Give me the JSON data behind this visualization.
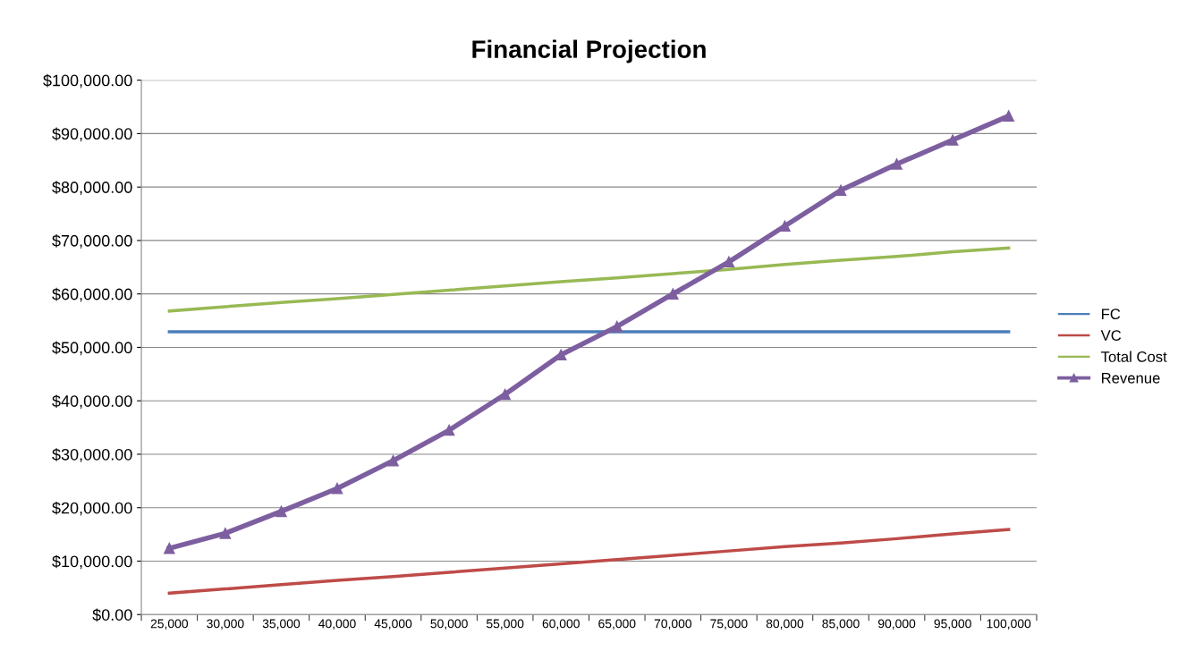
{
  "chart_data": {
    "type": "line",
    "title": "Financial Projection",
    "categories": [
      "25,000",
      "30,000",
      "35,000",
      "40,000",
      "45,000",
      "50,000",
      "55,000",
      "60,000",
      "65,000",
      "70,000",
      "75,000",
      "80,000",
      "85,000",
      "90,000",
      "95,000",
      "100,000"
    ],
    "series": [
      {
        "name": "FC",
        "color": "#4a7ebb",
        "marker": "none",
        "values": [
          52900,
          52900,
          52900,
          52900,
          52900,
          52900,
          52900,
          52900,
          52900,
          52900,
          52900,
          52900,
          52900,
          52900,
          52900,
          52900
        ]
      },
      {
        "name": "VC",
        "color": "#be4b48",
        "marker": "none",
        "values": [
          4000,
          4800,
          5600,
          6400,
          7100,
          7900,
          8700,
          9500,
          10300,
          11100,
          11900,
          12700,
          13400,
          14200,
          15100,
          15900
        ]
      },
      {
        "name": "Total Cost",
        "color": "#98b954",
        "marker": "none",
        "values": [
          56800,
          57600,
          58400,
          59100,
          59900,
          60700,
          61500,
          62300,
          63000,
          63800,
          64600,
          65500,
          66300,
          67000,
          67900,
          68600
        ]
      },
      {
        "name": "Revenue",
        "color": "#7d5fa0",
        "marker": "triangle",
        "values": [
          12400,
          15200,
          19300,
          23600,
          28800,
          34500,
          41200,
          48600,
          53900,
          60000,
          66000,
          72700,
          79400,
          84300,
          88800,
          93300
        ]
      }
    ],
    "ylim": [
      0,
      100000
    ],
    "yticks": [
      {
        "value": 0,
        "label": "$0.00"
      },
      {
        "value": 10000,
        "label": "$10,000.00"
      },
      {
        "value": 20000,
        "label": "$20,000.00"
      },
      {
        "value": 30000,
        "label": "$30,000.00"
      },
      {
        "value": 40000,
        "label": "$40,000.00"
      },
      {
        "value": 50000,
        "label": "$50,000.00"
      },
      {
        "value": 60000,
        "label": "$60,000.00"
      },
      {
        "value": 70000,
        "label": "$70,000.00"
      },
      {
        "value": 80000,
        "label": "$80,000.00"
      },
      {
        "value": 90000,
        "label": "$90,000.00"
      },
      {
        "value": 100000,
        "label": "$100,000.00"
      }
    ],
    "grid": "y",
    "legend": "right"
  }
}
